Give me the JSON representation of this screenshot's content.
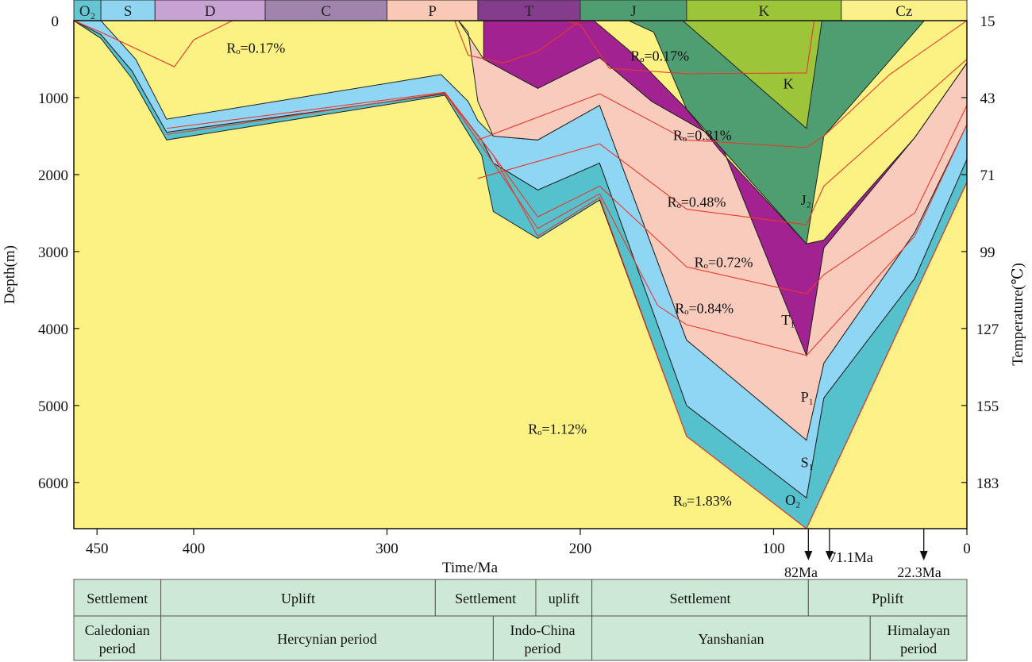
{
  "chart_data": {
    "type": "area",
    "xlabel": "Time/Ma",
    "ylabel": "Depth(m)",
    "y2label": "Temperature(℃)",
    "xlim": [
      462,
      0
    ],
    "ylim": [
      0,
      6600
    ],
    "x_ticks": [
      450,
      400,
      300,
      200,
      100,
      0
    ],
    "y_ticks": [
      0,
      1000,
      2000,
      3000,
      4000,
      5000,
      6000
    ],
    "y2_ticks": [
      {
        "depth": 0,
        "label": "15"
      },
      {
        "depth": 1000,
        "label": "43"
      },
      {
        "depth": 2000,
        "label": "71"
      },
      {
        "depth": 3000,
        "label": "99"
      },
      {
        "depth": 4000,
        "label": "127"
      },
      {
        "depth": 5000,
        "label": "155"
      },
      {
        "depth": 6000,
        "label": "183"
      }
    ],
    "periods": [
      {
        "label": "O₂",
        "start": 462,
        "end": 448,
        "color": "#64c6d2"
      },
      {
        "label": "S",
        "start": 448,
        "end": 420,
        "color": "#8fd5f2"
      },
      {
        "label": "D",
        "start": 420,
        "end": 363,
        "color": "#c7a2d2"
      },
      {
        "label": "C",
        "start": 363,
        "end": 300,
        "color": "#a084ae"
      },
      {
        "label": "P",
        "start": 300,
        "end": 253,
        "color": "#f9c8b6"
      },
      {
        "label": "T",
        "start": 253,
        "end": 200,
        "color": "#843c8c"
      },
      {
        "label": "J",
        "start": 200,
        "end": 145,
        "color": "#4e9e72"
      },
      {
        "label": "K",
        "start": 145,
        "end": 65,
        "color": "#9dc53a"
      },
      {
        "label": "Cz",
        "start": 65,
        "end": 0,
        "color": "#faf18b"
      }
    ],
    "layers": [
      {
        "name": "O₂",
        "color": "#54c1cd",
        "top": [
          [
            462,
            0
          ],
          [
            448,
            180
          ],
          [
            432,
            650
          ],
          [
            414,
            1450
          ],
          [
            270,
            950
          ],
          [
            251,
            1550
          ],
          [
            245,
            1850
          ],
          [
            222,
            2200
          ],
          [
            190,
            1850
          ],
          [
            145,
            5000
          ],
          [
            83,
            6200
          ],
          [
            74,
            4900
          ],
          [
            27,
            3350
          ],
          [
            0,
            1800
          ]
        ],
        "bottom": [
          [
            462,
            0
          ],
          [
            448,
            230
          ],
          [
            432,
            750
          ],
          [
            414,
            1550
          ],
          [
            270,
            970
          ],
          [
            251,
            1750
          ],
          [
            245,
            2480
          ],
          [
            222,
            2830
          ],
          [
            190,
            2330
          ],
          [
            145,
            5400
          ],
          [
            83,
            6600
          ],
          [
            0,
            2100
          ]
        ]
      },
      {
        "name": "S₁",
        "color": "#8fd6f5",
        "top": [
          [
            462,
            0
          ],
          [
            448,
            0
          ],
          [
            430,
            500
          ],
          [
            414,
            1280
          ],
          [
            272,
            700
          ],
          [
            258,
            1050
          ],
          [
            253,
            1300
          ],
          [
            245,
            1500
          ],
          [
            222,
            1550
          ],
          [
            190,
            1100
          ],
          [
            145,
            4150
          ],
          [
            83,
            5450
          ],
          [
            74,
            4450
          ],
          [
            27,
            2750
          ],
          [
            0,
            1350
          ]
        ],
        "bottom": [
          [
            462,
            0
          ],
          [
            448,
            180
          ],
          [
            432,
            650
          ],
          [
            414,
            1450
          ],
          [
            270,
            950
          ],
          [
            251,
            1550
          ],
          [
            245,
            1850
          ],
          [
            222,
            2200
          ],
          [
            190,
            1850
          ],
          [
            145,
            5000
          ],
          [
            83,
            6200
          ],
          [
            74,
            4900
          ],
          [
            27,
            3350
          ],
          [
            0,
            1800
          ]
        ]
      },
      {
        "name": "P₁",
        "color": "#f9cbbc",
        "top": [
          [
            263,
            0
          ],
          [
            250,
            500
          ],
          [
            222,
            880
          ],
          [
            190,
            480
          ],
          [
            163,
            1050
          ],
          [
            128,
            1550
          ],
          [
            83,
            4350
          ],
          [
            74,
            2950
          ],
          [
            27,
            1520
          ],
          [
            0,
            550
          ]
        ],
        "bottom": [
          [
            263,
            0
          ],
          [
            258,
            150
          ],
          [
            253,
            1050
          ],
          [
            245,
            1500
          ],
          [
            222,
            1550
          ],
          [
            190,
            1100
          ],
          [
            145,
            4150
          ],
          [
            83,
            5450
          ],
          [
            74,
            4450
          ],
          [
            27,
            2750
          ],
          [
            0,
            1350
          ]
        ]
      },
      {
        "name": "T₁",
        "color": "#a12290",
        "top": [
          [
            250,
            0
          ],
          [
            193,
            0
          ],
          [
            175,
            380
          ],
          [
            145,
            1150
          ],
          [
            128,
            1680
          ],
          [
            83,
            2900
          ],
          [
            74,
            2850
          ],
          [
            27,
            1520
          ],
          [
            0,
            550
          ],
          [
            0,
            0
          ]
        ],
        "bottom": [
          [
            250,
            500
          ],
          [
            222,
            880
          ],
          [
            190,
            480
          ],
          [
            163,
            1050
          ],
          [
            128,
            1550
          ],
          [
            83,
            4350
          ],
          [
            74,
            2950
          ],
          [
            27,
            1520
          ],
          [
            0,
            550
          ]
        ]
      },
      {
        "name": "J₂",
        "color": "#4e9e72",
        "top": [
          [
            175,
            0
          ],
          [
            22,
            0
          ]
        ],
        "bottom": [
          [
            175,
            0
          ],
          [
            162,
            150
          ],
          [
            145,
            1150
          ],
          [
            83,
            2900
          ],
          [
            74,
            1500
          ],
          [
            22,
            0
          ]
        ]
      },
      {
        "name": "K",
        "color": "#9dc53a",
        "top": [
          [
            147,
            0
          ],
          [
            75,
            0
          ]
        ],
        "bottom": [
          [
            147,
            0
          ],
          [
            83,
            1400
          ],
          [
            75,
            0
          ]
        ]
      },
      {
        "name": "Cz",
        "color": "#fef187",
        "top": [
          [
            83,
            6600
          ],
          [
            0,
            2100
          ]
        ],
        "bottom": [
          [
            83,
            6600
          ],
          [
            0,
            6600
          ]
        ]
      }
    ],
    "ro_lines": [
      {
        "label": "Rₒ=0.17%",
        "points": [
          [
            462,
            0
          ],
          [
            448,
            150
          ],
          [
            410,
            600
          ],
          [
            400,
            250
          ],
          [
            380,
            0
          ]
        ]
      },
      {
        "label": "Rₒ=0.17%",
        "points": [
          [
            208,
            0
          ],
          [
            200,
            50
          ],
          [
            185,
            620
          ],
          [
            145,
            690
          ],
          [
            83,
            680
          ],
          [
            79,
            0
          ]
        ]
      },
      {
        "label": "Rₒ=0.31%",
        "points": [
          [
            265,
            0
          ],
          [
            258,
            450
          ],
          [
            240,
            550
          ],
          [
            222,
            400
          ],
          [
            200,
            0
          ]
        ]
      },
      {
        "label": "Rₒ=0.48%",
        "points": [
          [
            253,
            1550
          ],
          [
            190,
            950
          ],
          [
            145,
            1550
          ],
          [
            83,
            1650
          ],
          [
            74,
            1500
          ],
          [
            40,
            700
          ],
          [
            0,
            0
          ]
        ]
      },
      {
        "label": "Rₒ=0.72%",
        "points": [
          [
            253,
            2050
          ],
          [
            190,
            1600
          ],
          [
            145,
            2450
          ],
          [
            83,
            2650
          ],
          [
            74,
            2150
          ],
          [
            27,
            1100
          ],
          [
            0,
            500
          ]
        ]
      },
      {
        "label": "Rₒ=0.84%",
        "points": [
          [
            414,
            1400
          ],
          [
            270,
            930
          ],
          [
            245,
            1750
          ],
          [
            222,
            2550
          ],
          [
            190,
            2150
          ],
          [
            145,
            3200
          ],
          [
            83,
            3550
          ],
          [
            74,
            3300
          ],
          [
            27,
            2500
          ],
          [
            0,
            1100
          ]
        ]
      },
      {
        "label": "Rₒ=1.12%",
        "points": [
          [
            414,
            1480
          ],
          [
            270,
            940
          ],
          [
            245,
            1850
          ],
          [
            222,
            2700
          ],
          [
            190,
            2250
          ],
          [
            160,
            3700
          ],
          [
            145,
            3950
          ],
          [
            83,
            4350
          ],
          [
            74,
            4100
          ],
          [
            27,
            2800
          ],
          [
            0,
            1350
          ]
        ]
      },
      {
        "label": "Rₒ=1.83%",
        "points": [
          [
            270,
            950
          ],
          [
            245,
            1750
          ],
          [
            222,
            2800
          ],
          [
            190,
            2300
          ],
          [
            145,
            5400
          ],
          [
            83,
            6600
          ],
          [
            0,
            2100
          ]
        ]
      }
    ],
    "labels": [
      {
        "text": "Rₒ=0.17%",
        "x": 383,
        "y": 420
      },
      {
        "text": "Rₒ=0.17%",
        "x": 174,
        "y": 520
      },
      {
        "text": "Rₒ=0.31%",
        "x": 152,
        "y": 1550
      },
      {
        "text": "Rₒ=0.48%",
        "x": 155,
        "y": 2420
      },
      {
        "text": "Rₒ=0.72%",
        "x": 141,
        "y": 3200
      },
      {
        "text": "Rₒ=0.84%",
        "x": 151,
        "y": 3800
      },
      {
        "text": "Rₒ=1.12%",
        "x": 227,
        "y": 5370
      },
      {
        "text": "Rₒ=1.83%",
        "x": 152,
        "y": 6300
      }
    ],
    "unit_labels": [
      {
        "text": "K",
        "x": 95,
        "y": 880
      },
      {
        "text": "J₂",
        "x": 86,
        "y": 2390
      },
      {
        "text": "T₁",
        "x": 96,
        "y": 3950
      },
      {
        "text": "P₁",
        "x": 86,
        "y": 4950
      },
      {
        "text": "S₁",
        "x": 86,
        "y": 5800
      },
      {
        "text": "O₂",
        "x": 94,
        "y": 6290
      }
    ],
    "events": [
      {
        "label": "82Ma",
        "x": 82
      },
      {
        "label": "71.1Ma",
        "x": 71.1
      },
      {
        "label": "22.3Ma",
        "x": 22.3
      }
    ]
  },
  "table": {
    "row1": [
      {
        "label": "Settlement",
        "start": 462,
        "end": 417
      },
      {
        "label": "Uplift",
        "start": 417,
        "end": 275
      },
      {
        "label": "Settlement",
        "start": 275,
        "end": 223
      },
      {
        "label": "uplift",
        "start": 223,
        "end": 194
      },
      {
        "label": "Settlement",
        "start": 194,
        "end": 82
      },
      {
        "label": "Pplift",
        "start": 82,
        "end": 0
      }
    ],
    "row2": [
      {
        "label": "Caledonian period",
        "start": 462,
        "end": 417
      },
      {
        "label": "Hercynian period",
        "start": 417,
        "end": 245
      },
      {
        "label": "Indo-China period",
        "start": 245,
        "end": 194
      },
      {
        "label": "Yanshanian",
        "start": 194,
        "end": 50
      },
      {
        "label": "Himalayan period",
        "start": 50,
        "end": 0
      }
    ]
  }
}
